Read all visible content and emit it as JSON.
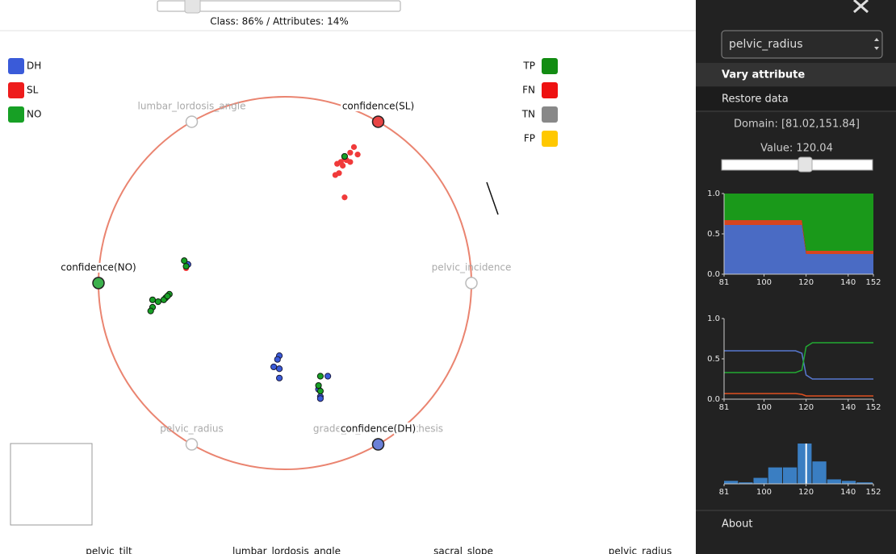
{
  "top": {
    "slider_label": "Class: 86% / Attributes: 14%"
  },
  "classes": [
    {
      "label": "DH",
      "color": "#3a5bd9"
    },
    {
      "label": "SL",
      "color": "#ee1c1c"
    },
    {
      "label": "NO",
      "color": "#17a025"
    }
  ],
  "outcomes": [
    {
      "label": "TP",
      "color": "#128c12"
    },
    {
      "label": "FN",
      "color": "#ee1111"
    },
    {
      "label": "TN",
      "color": "#888888"
    },
    {
      "label": "FP",
      "color": "#ffc800"
    }
  ],
  "anchors": [
    {
      "label": "lumbar_lordosis_angle",
      "color": null
    },
    {
      "label": "confidence(SL)",
      "color": "#e84545"
    },
    {
      "label": "pelvic_incidence",
      "color": null
    },
    {
      "label": "grade_of_spondylolisthesis",
      "color": null
    },
    {
      "label": "confidence(DH)",
      "color": "#6b80d8"
    },
    {
      "label": "pelvic_radius",
      "color": null
    },
    {
      "label": "confidence(NO)",
      "color": "#3cb04c"
    }
  ],
  "points": {
    "type": "scatter",
    "series": [
      {
        "color": "#f03a3a",
        "stroke": "none",
        "x": [
          0.37,
          0.35,
          0.39,
          0.32,
          0.3,
          0.33,
          0.28,
          0.31,
          0.29,
          0.27,
          0.35,
          0.32,
          -0.53
        ],
        "y": [
          0.73,
          0.7,
          0.69,
          0.67,
          0.65,
          0.66,
          0.64,
          0.63,
          0.59,
          0.58,
          0.65,
          0.46,
          0.08
        ]
      },
      {
        "color": "#3a5bd9",
        "stroke": "#1a1a40",
        "x": [
          -0.52,
          -0.03,
          -0.04,
          -0.06,
          -0.03,
          -0.03,
          0.23,
          0.18,
          0.19,
          0.19
        ],
        "y": [
          0.1,
          -0.39,
          -0.41,
          -0.45,
          -0.46,
          -0.51,
          -0.5,
          -0.57,
          -0.61,
          -0.62
        ]
      },
      {
        "color": "#17a025",
        "stroke": "#102010",
        "x": [
          0.32,
          -0.54,
          -0.53,
          -0.62,
          -0.64,
          -0.65,
          -0.68,
          -0.71,
          -0.71,
          -0.72,
          -0.63,
          0.19,
          0.18,
          0.19
        ],
        "y": [
          0.68,
          0.12,
          0.09,
          -0.06,
          -0.08,
          -0.09,
          -0.1,
          -0.09,
          -0.13,
          -0.15,
          -0.07,
          -0.5,
          -0.55,
          -0.58
        ]
      }
    ]
  },
  "bottom_labels": [
    "pelvic_tilt",
    "lumbar_lordosis_angle",
    "sacral_slope",
    "pelvic_radius"
  ],
  "sidebar": {
    "select": "pelvic_radius",
    "menu": [
      "Vary attribute",
      "Restore data"
    ],
    "domain": "Domain: [81.02,151.84]",
    "value": "Value: 120.04",
    "about": "About",
    "charts": [
      {
        "type": "area",
        "x": [
          81,
          118,
          120,
          152
        ],
        "xlim": [
          81,
          152
        ],
        "xticks": [
          81,
          100,
          120,
          140,
          152
        ],
        "ylim": [
          0,
          1
        ],
        "yticks": [
          {
            "value": 0,
            "label": "0.0"
          },
          {
            "value": 0.5,
            "label": "0.5"
          },
          {
            "value": 1,
            "label": "1.0"
          }
        ],
        "series": [
          {
            "color": "#4a6bc4",
            "values": [
              0.61,
              0.61,
              0.25,
              0.25
            ]
          },
          {
            "color": "#d64520",
            "values": [
              0.06,
              0.06,
              0.04,
              0.04
            ]
          },
          {
            "color": "#1a991a",
            "values": [
              0.33,
              0.33,
              0.71,
              0.71
            ]
          }
        ]
      },
      {
        "type": "line",
        "x": [
          81,
          115,
          118,
          120,
          123,
          152
        ],
        "xlim": [
          81,
          152
        ],
        "xticks": [
          81,
          100,
          120,
          140,
          152
        ],
        "ylim": [
          0,
          1
        ],
        "yticks": [
          {
            "value": 0,
            "label": "0.0"
          },
          {
            "value": 0.5,
            "label": "0.5"
          },
          {
            "value": 1,
            "label": "1.0"
          }
        ],
        "series": [
          {
            "color": "#5878d0",
            "values": [
              0.6,
              0.6,
              0.57,
              0.3,
              0.25,
              0.25
            ]
          },
          {
            "color": "#22aa33",
            "values": [
              0.33,
              0.33,
              0.36,
              0.65,
              0.7,
              0.7
            ]
          },
          {
            "color": "#e05020",
            "values": [
              0.07,
              0.07,
              0.06,
              0.04,
              0.04,
              0.04
            ]
          }
        ]
      },
      {
        "type": "histogram",
        "bins": [
          81,
          88,
          95,
          102,
          109,
          116,
          123,
          130,
          137,
          144,
          152
        ],
        "counts": [
          2,
          1,
          4,
          11,
          11,
          27,
          15,
          3,
          2,
          1
        ],
        "color": "#3a7ec2",
        "marker": 120.04,
        "xlim": [
          81,
          152
        ],
        "xticks": [
          81,
          100,
          120,
          140,
          152
        ]
      }
    ]
  }
}
